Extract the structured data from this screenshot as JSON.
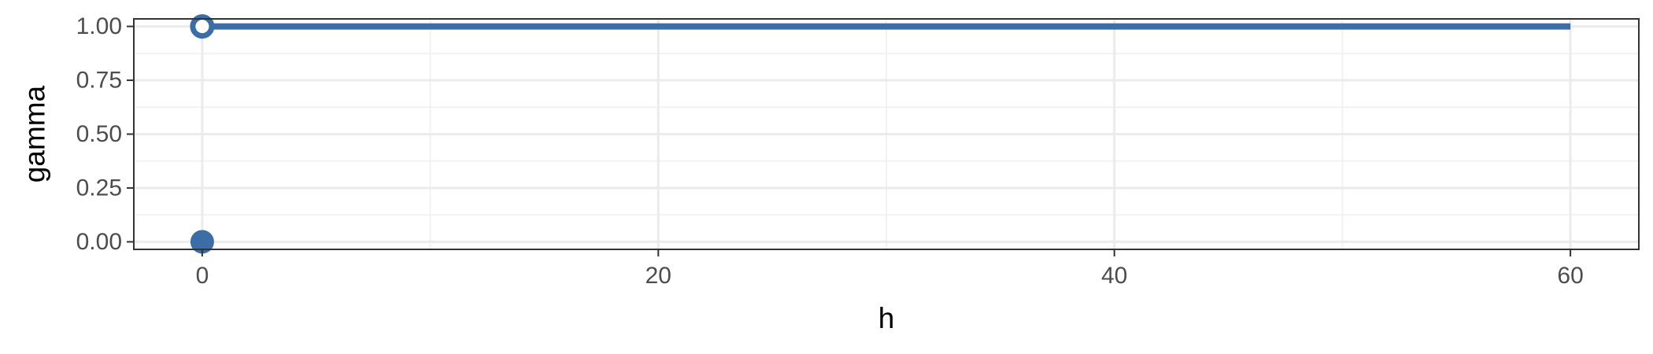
{
  "chart_data": {
    "type": "line",
    "title": "",
    "xlabel": "h",
    "ylabel": "gamma",
    "xlim": [
      -3,
      63
    ],
    "ylim": [
      -0.035,
      1.035
    ],
    "x_ticks": [
      0,
      20,
      40,
      60
    ],
    "x_tick_labels": [
      "0",
      "20",
      "40",
      "60"
    ],
    "x_minor_ticks": [
      10,
      30,
      50
    ],
    "y_ticks": [
      0,
      0.25,
      0.5,
      0.75,
      1
    ],
    "y_tick_labels": [
      "0.00",
      "0.25",
      "0.50",
      "0.75",
      "1.00"
    ],
    "y_minor_ticks": [
      0.125,
      0.375,
      0.625,
      0.875
    ],
    "grid": true,
    "series": [
      {
        "segment": {
          "x": [
            0,
            60
          ],
          "y": [
            1,
            1
          ]
        },
        "open_point": {
          "x": 0,
          "y": 1
        },
        "closed_point": {
          "x": 0,
          "y": 0
        }
      }
    ],
    "colors": {
      "series": "#3C6DA6",
      "panel_border": "#333333",
      "grid_major": "#EBEBEB",
      "grid_minor": "#F2F2F2",
      "tick_text": "#4D4D4D",
      "title_text": "#000000"
    }
  }
}
